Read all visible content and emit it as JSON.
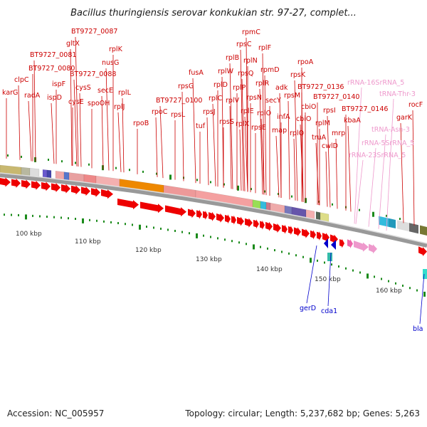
{
  "title": "Bacillus thuringiensis serovar konkukian str. 97-27, complet...",
  "footer": {
    "accession": "Accession: NC_005957",
    "info": "Topology: circular; Length: 5,237,682 bp; Genes: 5,263"
  },
  "scale_labels": [
    "100 kbp",
    "110 kbp",
    "120 kbp",
    "130 kbp",
    "140 kbp",
    "150 kbp",
    "160 kbp"
  ],
  "colors": {
    "gene_label": "#cc0000",
    "rna_label": "#ee99cc",
    "minus_label": "#0000cc",
    "forward_arrow": "#ee0000",
    "tick": "#1a8a1a"
  },
  "labels_forward": [
    "karG",
    "clpC",
    "radA",
    "BT9727_0080",
    "BT9727_0081",
    "ispD",
    "ispF",
    "gltX",
    "BT9727_0087",
    "cysE",
    "cysS",
    "BT9727_0088",
    "spoOH",
    "secE",
    "nusG",
    "rplK",
    "rplL",
    "rplJ",
    "rpoB",
    "rpoC",
    "BT9727_0100",
    "rpsL",
    "rpsG",
    "fusA",
    "tuf",
    "rpsJ",
    "rplC",
    "rplD",
    "rplW",
    "rplB",
    "rpsS",
    "rplV",
    "rpsC",
    "rplP",
    "rpmC",
    "rpsQ",
    "rplN",
    "rplX",
    "rplE",
    "rpsN",
    "rplF",
    "rplR",
    "rpsE",
    "rpmD",
    "rplO",
    "secY",
    "adk",
    "map",
    "infA",
    "rpsM",
    "rpsK",
    "rpoA",
    "rplQ",
    "cbiO",
    "cbiO",
    "BT9727_0136",
    "truA",
    "rplM",
    "cwlD",
    "rpsI",
    "BT9727_0140",
    "mrp",
    "kbaA",
    "BT9727_0146",
    "rocF",
    "garK"
  ],
  "labels_rna": [
    "rRNA-16SrRNA_5",
    "tRNA-Thr-3",
    "tRNA-Asn-3",
    "rRNA-5SrRNA_5",
    "rRNA-23SrRNA_5"
  ],
  "labels_minus": [
    "gerD",
    "cda1",
    "bla"
  ]
}
